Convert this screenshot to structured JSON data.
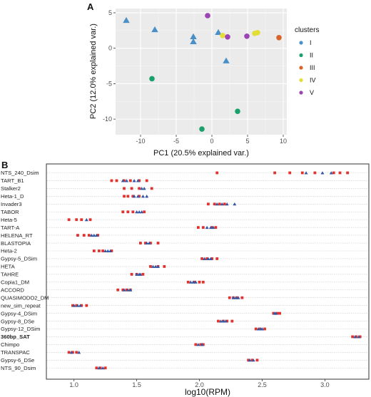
{
  "chart_data": [
    {
      "panel": "A",
      "type": "scatter",
      "xlabel": "PC1 (20.5% explained var.)",
      "ylabel": "PC2 (12.0% explained var.)",
      "xlim": [
        -13.5,
        10.5
      ],
      "ylim": [
        -12.2,
        5.6
      ],
      "xticks": [
        -10,
        -5,
        0,
        5,
        10
      ],
      "yticks": [
        -10,
        -5,
        0,
        5
      ],
      "grid": true,
      "legend": {
        "title": "clusters",
        "position": "right",
        "entries": [
          {
            "label": "I",
            "color": "#4a90c8",
            "shape": "circle"
          },
          {
            "label": "II",
            "color": "#1aa06a",
            "shape": "circle"
          },
          {
            "label": "III",
            "color": "#d9642a",
            "shape": "circle"
          },
          {
            "label": "IV",
            "color": "#e3dd3a",
            "shape": "circle"
          },
          {
            "label": "V",
            "color": "#9b44b4",
            "shape": "circle"
          }
        ]
      },
      "points": [
        {
          "x": -12.0,
          "y": 3.9,
          "cluster": "I",
          "shape": "triangle"
        },
        {
          "x": -8.0,
          "y": 2.6,
          "cluster": "I",
          "shape": "triangle"
        },
        {
          "x": -2.6,
          "y": 1.6,
          "cluster": "I",
          "shape": "triangle"
        },
        {
          "x": -2.6,
          "y": 0.9,
          "cluster": "I",
          "shape": "triangle"
        },
        {
          "x": 0.9,
          "y": 2.2,
          "cluster": "I",
          "shape": "triangle"
        },
        {
          "x": 2.0,
          "y": -1.8,
          "cluster": "I",
          "shape": "triangle"
        },
        {
          "x": -8.4,
          "y": -4.3,
          "cluster": "II",
          "shape": "circle"
        },
        {
          "x": -1.4,
          "y": -11.4,
          "cluster": "II",
          "shape": "circle"
        },
        {
          "x": 3.6,
          "y": -8.9,
          "cluster": "II",
          "shape": "circle"
        },
        {
          "x": 9.4,
          "y": 1.5,
          "cluster": "III",
          "shape": "circle"
        },
        {
          "x": 1.5,
          "y": 1.8,
          "cluster": "IV",
          "shape": "circle"
        },
        {
          "x": 6.0,
          "y": 2.1,
          "cluster": "IV",
          "shape": "circle"
        },
        {
          "x": 6.4,
          "y": 2.2,
          "cluster": "IV",
          "shape": "circle"
        },
        {
          "x": -0.6,
          "y": 4.6,
          "cluster": "V",
          "shape": "circle"
        },
        {
          "x": 2.2,
          "y": 1.6,
          "cluster": "V",
          "shape": "circle"
        },
        {
          "x": 4.9,
          "y": 1.7,
          "cluster": "V",
          "shape": "circle"
        }
      ]
    },
    {
      "panel": "B",
      "type": "scatter",
      "xlabel": "log10(RPM)",
      "xlim": [
        0.78,
        3.35
      ],
      "xticks": [
        1.0,
        1.5,
        2.0,
        2.5,
        3.0
      ],
      "xtick_labels": [
        "1.0",
        "1.5",
        "2.0",
        "2.5",
        "3.0"
      ],
      "colors": {
        "square": "#e0332f",
        "triangle": "#3456a3"
      },
      "bold_categories": [
        "360bp_SAT"
      ],
      "categories": [
        "NTS_240_Dsim",
        "TART_B1",
        "Stalker2",
        "Heta-1_D",
        "Invader3",
        "TABOR",
        "Heta-5",
        "TART-A",
        "HELENA_RT",
        "BLASTOPIA",
        "Heta-2",
        "Gypsy-5_DSim",
        "HETA",
        "TAHRE",
        "Copia1_DM",
        "ACCORD",
        "QUASIMODO2_DM",
        "new_sim_repeat",
        "Gypsy-4_DSim",
        "Gypsy-8_DSe",
        "Gypsy-12_DSim",
        "360bp_SAT",
        "Chimpo",
        "TRANSPAC",
        "Gypsy-6_DSe",
        "NTS_90_Dsim"
      ],
      "rows": [
        {
          "category": "NTS_240_Dsim",
          "squares": [
            2.14,
            2.6,
            2.72,
            2.82,
            2.92,
            3.07,
            3.12,
            3.18
          ],
          "triangles": [
            2.85,
            2.98,
            3.05
          ]
        },
        {
          "category": "TART_B1",
          "squares": [
            1.3,
            1.34,
            1.4,
            1.45,
            1.52,
            1.58
          ],
          "triangles": [
            1.39,
            1.42,
            1.48,
            1.51
          ]
        },
        {
          "category": "Stalker2",
          "squares": [
            1.4,
            1.46,
            1.52,
            1.62
          ],
          "triangles": [
            1.54,
            1.56
          ]
        },
        {
          "category": "Heta-1_D",
          "squares": [
            1.4,
            1.43,
            1.47,
            1.52
          ],
          "triangles": [
            1.48,
            1.51,
            1.55,
            1.58
          ]
        },
        {
          "category": "Invader3",
          "squares": [
            2.07,
            2.12,
            2.16,
            2.2
          ],
          "triangles": [
            2.14,
            2.18,
            2.22,
            2.28
          ]
        },
        {
          "category": "TABOR",
          "squares": [
            1.39,
            1.43,
            1.47,
            1.56
          ],
          "triangles": [
            1.5,
            1.52,
            1.54
          ]
        },
        {
          "category": "Heta-5",
          "squares": [
            0.96,
            1.02,
            1.06,
            1.13
          ],
          "triangles": [
            1.1
          ]
        },
        {
          "category": "TART-A",
          "squares": [
            1.99,
            2.03,
            2.1,
            2.13
          ],
          "triangles": [
            2.06,
            2.09,
            2.11
          ]
        },
        {
          "category": "HELENA_RT",
          "squares": [
            1.03,
            1.08,
            1.12,
            1.19
          ],
          "triangles": [
            1.14,
            1.16,
            1.18
          ]
        },
        {
          "category": "BLASTOPIA",
          "squares": [
            1.53,
            1.57,
            1.61,
            1.67
          ],
          "triangles": [
            1.58,
            1.6
          ]
        },
        {
          "category": "Heta-2",
          "squares": [
            1.16,
            1.2,
            1.23,
            1.3
          ],
          "triangles": [
            1.25,
            1.27,
            1.29
          ]
        },
        {
          "category": "Gypsy-5_DSim",
          "squares": [
            2.02,
            2.06,
            2.1,
            2.14
          ],
          "triangles": [
            2.04,
            2.07,
            2.09
          ]
        },
        {
          "category": "HETA",
          "squares": [
            1.61,
            1.67,
            1.72
          ],
          "triangles": [
            1.63,
            1.65,
            1.67
          ]
        },
        {
          "category": "TAHRE",
          "squares": [
            1.46,
            1.5,
            1.55
          ],
          "triangles": [
            1.5,
            1.52,
            1.53
          ]
        },
        {
          "category": "Copia1_DM",
          "squares": [
            1.91,
            1.96,
            2.0,
            2.03
          ],
          "triangles": [
            1.93,
            1.95,
            1.97
          ]
        },
        {
          "category": "ACCORD",
          "squares": [
            1.35,
            1.39,
            1.42,
            1.45
          ],
          "triangles": [
            1.4,
            1.43,
            1.45
          ]
        },
        {
          "category": "QUASIMODO2_DM",
          "squares": [
            2.24,
            2.27,
            2.3,
            2.34
          ],
          "triangles": [
            2.27,
            2.29,
            2.31
          ]
        },
        {
          "category": "new_sim_repeat",
          "squares": [
            0.99,
            1.02,
            1.06,
            1.1
          ],
          "triangles": [
            1.0,
            1.03,
            1.05
          ]
        },
        {
          "category": "Gypsy-4_DSim",
          "squares": [
            2.59,
            2.62,
            2.64
          ],
          "triangles": [
            2.6,
            2.61
          ]
        },
        {
          "category": "Gypsy-8_DSe",
          "squares": [
            2.15,
            2.19,
            2.22,
            2.26
          ],
          "triangles": [
            2.17,
            2.19,
            2.21
          ]
        },
        {
          "category": "Gypsy-12_DSim",
          "squares": [
            2.45,
            2.48,
            2.52
          ],
          "triangles": [
            2.47,
            2.49,
            2.5
          ]
        },
        {
          "category": "360bp_SAT",
          "squares": [
            3.22,
            3.25,
            3.28
          ],
          "triangles": [
            3.24,
            3.27
          ]
        },
        {
          "category": "Chimpo",
          "squares": [
            1.97,
            2.01,
            2.03
          ],
          "triangles": [
            1.99,
            2.02
          ]
        },
        {
          "category": "TRANSPAC",
          "squares": [
            0.96,
            0.99,
            1.02
          ],
          "triangles": [
            0.98,
            1.04
          ]
        },
        {
          "category": "Gypsy-6_DSe",
          "squares": [
            2.39,
            2.42,
            2.46
          ],
          "triangles": [
            2.4,
            2.43
          ]
        },
        {
          "category": "NTS_90_Dsim",
          "squares": [
            1.18,
            1.21,
            1.25
          ],
          "triangles": [
            1.2,
            1.23
          ]
        }
      ]
    }
  ]
}
